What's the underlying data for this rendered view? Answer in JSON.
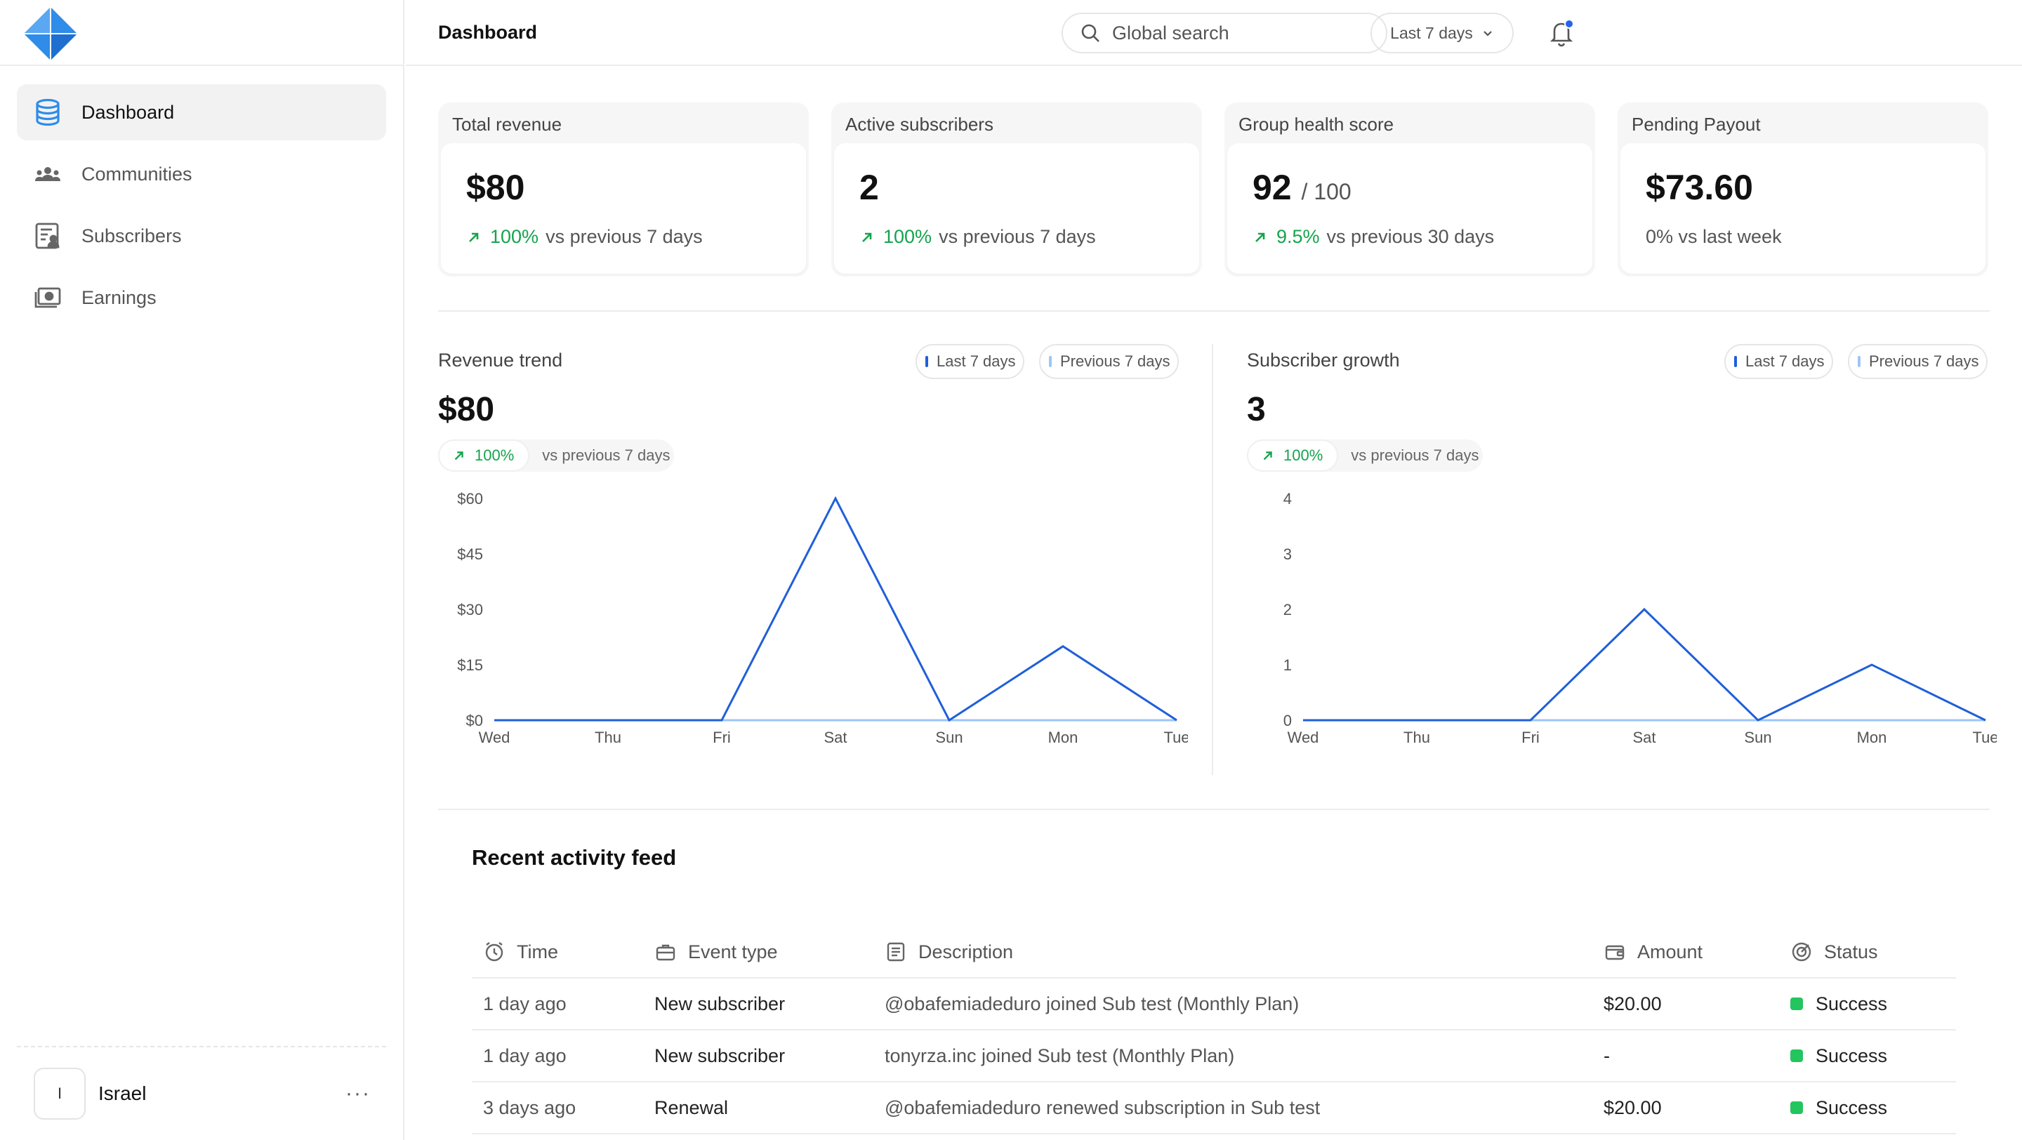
{
  "colors": {
    "accent": "#1f5fd9",
    "logo_blue": "#2f8ce8",
    "success": "#14a44d",
    "success_dot": "#22c55e",
    "notification_dot": "#2563eb"
  },
  "app": {
    "logo_icon": "diamond-logo"
  },
  "sidebar": {
    "items": [
      {
        "label": "Dashboard",
        "icon": "database-icon",
        "active": true
      },
      {
        "label": "Communities",
        "icon": "users-icon",
        "active": false
      },
      {
        "label": "Subscribers",
        "icon": "subscriber-list-icon",
        "active": false
      },
      {
        "label": "Earnings",
        "icon": "money-icon",
        "active": false
      }
    ],
    "user": {
      "initial": "I",
      "name": "Israel",
      "more": "···"
    }
  },
  "topbar": {
    "title": "Dashboard",
    "search_placeholder": "Global search",
    "range": "Last 7 days"
  },
  "stats": [
    {
      "label": "Total revenue",
      "value": "$80",
      "suffix": "",
      "pct": "100%",
      "delta_text": "vs previous 7 days",
      "trend": "up"
    },
    {
      "label": "Active subscribers",
      "value": "2",
      "suffix": "",
      "pct": "100%",
      "delta_text": "vs previous 7 days",
      "trend": "up"
    },
    {
      "label": "Group health score",
      "value": "92",
      "suffix": "/ 100",
      "pct": "9.5%",
      "delta_text": "vs previous 30 days",
      "trend": "up"
    },
    {
      "label": "Pending Payout",
      "value": "$73.60",
      "suffix": "",
      "pct": "",
      "delta_text": "0% vs last week",
      "trend": "none"
    }
  ],
  "charts": {
    "revenue": {
      "title": "Revenue trend",
      "big_value": "$80",
      "pct": "100%",
      "delta_text": "vs previous 7 days",
      "legend": [
        "Last 7 days",
        "Previous 7 days"
      ]
    },
    "subscribers": {
      "title": "Subscriber growth",
      "big_value": "3",
      "pct": "100%",
      "delta_text": "vs previous 7 days",
      "legend": [
        "Last 7 days",
        "Previous 7 days"
      ]
    }
  },
  "chart_data": [
    {
      "type": "line",
      "title": "Revenue trend",
      "categories": [
        "Wed",
        "Thu",
        "Fri",
        "Sat",
        "Sun",
        "Mon",
        "Tue"
      ],
      "series": [
        {
          "name": "Last 7 days",
          "values": [
            0,
            0,
            0,
            60,
            0,
            20,
            0
          ],
          "color": "#1f5fd9"
        },
        {
          "name": "Previous 7 days",
          "values": [
            0,
            0,
            0,
            0,
            0,
            0,
            0
          ],
          "color": "#9ec5f8"
        }
      ],
      "yticks": [
        "$0",
        "$15",
        "$30",
        "$45",
        "$60"
      ],
      "ytick_values": [
        0,
        15,
        30,
        45,
        60
      ],
      "ylim": [
        0,
        60
      ],
      "grid": false,
      "legend": "top-right"
    },
    {
      "type": "line",
      "title": "Subscriber growth",
      "categories": [
        "Wed",
        "Thu",
        "Fri",
        "Sat",
        "Sun",
        "Mon",
        "Tue"
      ],
      "series": [
        {
          "name": "Last 7 days",
          "values": [
            0,
            0,
            0,
            2,
            0,
            1,
            0
          ],
          "color": "#1f5fd9"
        },
        {
          "name": "Previous 7 days",
          "values": [
            0,
            0,
            0,
            0,
            0,
            0,
            0
          ],
          "color": "#9ec5f8"
        }
      ],
      "yticks": [
        "0",
        "1",
        "2",
        "3",
        "4"
      ],
      "ytick_values": [
        0,
        1,
        2,
        3,
        4
      ],
      "ylim": [
        0,
        4
      ],
      "grid": false,
      "legend": "top-right"
    }
  ],
  "activity": {
    "title": "Recent activity feed",
    "columns": [
      {
        "label": "Time",
        "icon": "clock-icon"
      },
      {
        "label": "Event type",
        "icon": "briefcase-icon"
      },
      {
        "label": "Description",
        "icon": "document-icon"
      },
      {
        "label": "Amount",
        "icon": "wallet-icon"
      },
      {
        "label": "Status",
        "icon": "target-icon"
      }
    ],
    "rows": [
      {
        "time": "1 day ago",
        "event": "New subscriber",
        "description": "@obafemiadeduro joined Sub test (Monthly Plan)",
        "amount": "$20.00",
        "status": "Success"
      },
      {
        "time": "1 day ago",
        "event": "New subscriber",
        "description": "tonyrza.inc joined Sub test (Monthly Plan)",
        "amount": "-",
        "status": "Success"
      },
      {
        "time": "3 days ago",
        "event": "Renewal",
        "description": "@obafemiadeduro renewed subscription in Sub test",
        "amount": "$20.00",
        "status": "Success"
      }
    ]
  }
}
